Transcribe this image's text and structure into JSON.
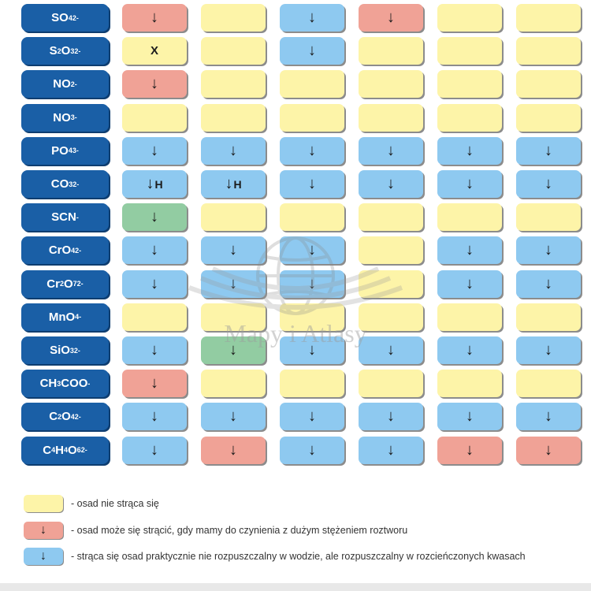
{
  "colors": {
    "ion": "#1a5fa6",
    "yellow": "#fdf4a8",
    "red": "#f0a296",
    "blue": "#8ec9f0",
    "green": "#92cca2"
  },
  "rows": [
    {
      "base": "SO",
      "sub": "4",
      "sup": "2-",
      "cells": [
        [
          "red",
          "↓",
          ""
        ],
        [
          "yellow",
          "",
          ""
        ],
        [
          "blue",
          "↓",
          ""
        ],
        [
          "red",
          "↓",
          ""
        ],
        [
          "yellow",
          "",
          ""
        ],
        [
          "yellow",
          "",
          ""
        ]
      ]
    },
    {
      "base": "S",
      "sub": "2",
      "base2": "O",
      "sub2": "3",
      "sup": "2-",
      "cells": [
        [
          "yellow",
          "X",
          ""
        ],
        [
          "yellow",
          "",
          ""
        ],
        [
          "blue",
          "↓",
          ""
        ],
        [
          "yellow",
          "",
          ""
        ],
        [
          "yellow",
          "",
          ""
        ],
        [
          "yellow",
          "",
          ""
        ]
      ]
    },
    {
      "base": "NO",
      "sub": "2",
      "sup": "-",
      "cells": [
        [
          "red",
          "↓",
          ""
        ],
        [
          "yellow",
          "",
          ""
        ],
        [
          "yellow",
          "",
          ""
        ],
        [
          "yellow",
          "",
          ""
        ],
        [
          "yellow",
          "",
          ""
        ],
        [
          "yellow",
          "",
          ""
        ]
      ]
    },
    {
      "base": "NO",
      "sub": "3",
      "sup": "-",
      "cells": [
        [
          "yellow",
          "",
          ""
        ],
        [
          "yellow",
          "",
          ""
        ],
        [
          "yellow",
          "",
          ""
        ],
        [
          "yellow",
          "",
          ""
        ],
        [
          "yellow",
          "",
          ""
        ],
        [
          "yellow",
          "",
          ""
        ]
      ]
    },
    {
      "base": "PO",
      "sub": "4",
      "sup": "3-",
      "cells": [
        [
          "blue",
          "↓",
          ""
        ],
        [
          "blue",
          "↓",
          ""
        ],
        [
          "blue",
          "↓",
          ""
        ],
        [
          "blue",
          "↓",
          ""
        ],
        [
          "blue",
          "↓",
          ""
        ],
        [
          "blue",
          "↓",
          ""
        ]
      ]
    },
    {
      "base": "CO",
      "sub": "3",
      "sup": "2-",
      "cells": [
        [
          "blue",
          "↓",
          "H"
        ],
        [
          "blue",
          "↓",
          "H"
        ],
        [
          "blue",
          "↓",
          ""
        ],
        [
          "blue",
          "↓",
          ""
        ],
        [
          "blue",
          "↓",
          ""
        ],
        [
          "blue",
          "↓",
          ""
        ]
      ]
    },
    {
      "base": "SCN",
      "sup": "-",
      "cells": [
        [
          "green",
          "↓",
          ""
        ],
        [
          "yellow",
          "",
          ""
        ],
        [
          "yellow",
          "",
          ""
        ],
        [
          "yellow",
          "",
          ""
        ],
        [
          "yellow",
          "",
          ""
        ],
        [
          "yellow",
          "",
          ""
        ]
      ]
    },
    {
      "base": "CrO",
      "sub": "4",
      "sup": "2-",
      "cells": [
        [
          "blue",
          "↓",
          ""
        ],
        [
          "blue",
          "↓",
          ""
        ],
        [
          "blue",
          "↓",
          ""
        ],
        [
          "yellow",
          "",
          ""
        ],
        [
          "blue",
          "↓",
          ""
        ],
        [
          "blue",
          "↓",
          ""
        ]
      ]
    },
    {
      "base": "Cr",
      "sub": "2",
      "base2": "O",
      "sub2": "7",
      "sup": "2-",
      "cells": [
        [
          "blue",
          "↓",
          ""
        ],
        [
          "blue",
          "↓",
          ""
        ],
        [
          "blue",
          "↓",
          ""
        ],
        [
          "yellow",
          "",
          ""
        ],
        [
          "blue",
          "↓",
          ""
        ],
        [
          "blue",
          "↓",
          ""
        ]
      ]
    },
    {
      "base": "MnO",
      "sub": "4",
      "sup": "-",
      "cells": [
        [
          "yellow",
          "",
          ""
        ],
        [
          "yellow",
          "",
          ""
        ],
        [
          "yellow",
          "",
          ""
        ],
        [
          "yellow",
          "",
          ""
        ],
        [
          "yellow",
          "",
          ""
        ],
        [
          "yellow",
          "",
          ""
        ]
      ]
    },
    {
      "base": "SiO",
      "sub": "3",
      "sup": "2-",
      "cells": [
        [
          "blue",
          "↓",
          ""
        ],
        [
          "green",
          "↓",
          ""
        ],
        [
          "blue",
          "↓",
          ""
        ],
        [
          "blue",
          "↓",
          ""
        ],
        [
          "blue",
          "↓",
          ""
        ],
        [
          "blue",
          "↓",
          ""
        ]
      ]
    },
    {
      "base": "CH",
      "sub": "3",
      "base2": "COO",
      "sup": "-",
      "cells": [
        [
          "red",
          "↓",
          ""
        ],
        [
          "yellow",
          "",
          ""
        ],
        [
          "yellow",
          "",
          ""
        ],
        [
          "yellow",
          "",
          ""
        ],
        [
          "yellow",
          "",
          ""
        ],
        [
          "yellow",
          "",
          ""
        ]
      ]
    },
    {
      "base": "C",
      "sub": "2",
      "base2": "O",
      "sub2": "4",
      "sup": "2-",
      "cells": [
        [
          "blue",
          "↓",
          ""
        ],
        [
          "blue",
          "↓",
          ""
        ],
        [
          "blue",
          "↓",
          ""
        ],
        [
          "blue",
          "↓",
          ""
        ],
        [
          "blue",
          "↓",
          ""
        ],
        [
          "blue",
          "↓",
          ""
        ]
      ]
    },
    {
      "base": "C",
      "sub": "4",
      "base2": "H",
      "sub2": "4",
      "base3": "O",
      "sub3": "6",
      "sup": "2-",
      "cells": [
        [
          "blue",
          "↓",
          ""
        ],
        [
          "red",
          "↓",
          ""
        ],
        [
          "blue",
          "↓",
          ""
        ],
        [
          "blue",
          "↓",
          ""
        ],
        [
          "red",
          "↓",
          ""
        ],
        [
          "red",
          "↓",
          ""
        ]
      ]
    }
  ],
  "watermark": {
    "text": "Mapy i Atlasy"
  },
  "legend": [
    {
      "color": "yellow",
      "mark": "",
      "text": "- osad nie strąca się"
    },
    {
      "color": "red",
      "mark": "↓",
      "text": "- osad może się strącić, gdy mamy do czynienia z dużym stężeniem roztworu"
    },
    {
      "color": "blue",
      "mark": "↓",
      "text": "- strąca się osad praktycznie nie rozpuszczalny w wodzie, ale rozpuszczalny w rozcieńczonych kwasach"
    }
  ]
}
